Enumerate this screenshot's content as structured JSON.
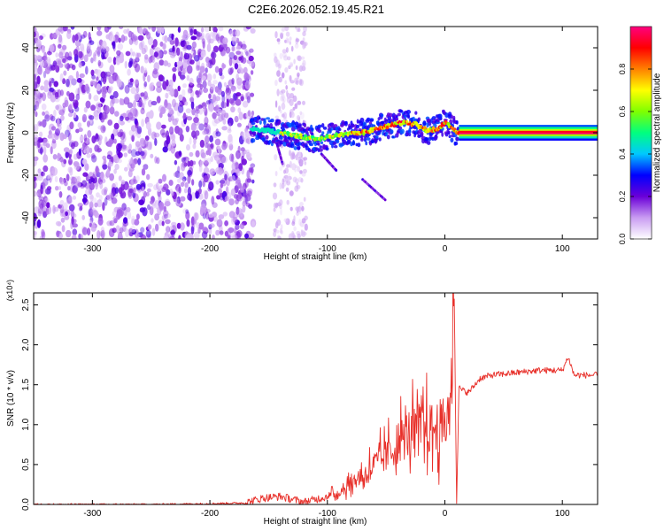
{
  "title": "C2E6.2026.052.19.45.R21",
  "chart_data": [
    {
      "type": "heatmap",
      "xlabel": "Height of straight line (km)",
      "ylabel": "Frequency (Hz)",
      "xlim": [
        -350,
        130
      ],
      "ylim": [
        -50,
        50
      ],
      "xticks": [
        -300,
        -200,
        -100,
        0,
        100
      ],
      "yticks": [
        40,
        20,
        0,
        -20,
        -40
      ],
      "colorbar": {
        "label": "Normalized spectral amplitude",
        "range": [
          0,
          1
        ],
        "ticks": [
          "0.0",
          "0.2",
          "0.4",
          "0.6",
          "0.8"
        ],
        "colors": [
          "#ffffff",
          "#c99cf2",
          "#6a00d8",
          "#0000ff",
          "#00c8ff",
          "#00ff7f",
          "#7fff00",
          "#ffff00",
          "#ff8000",
          "#ff0000",
          "#ff0080"
        ]
      },
      "ridge": {
        "x": [
          -165,
          -150,
          -130,
          -110,
          -90,
          -70,
          -50,
          -35,
          -25,
          -15,
          -5,
          0,
          10,
          130
        ],
        "y": [
          2,
          1,
          -1,
          -3,
          -1,
          0,
          3,
          5,
          4,
          1,
          2,
          5,
          0,
          0
        ]
      },
      "secondary_tracks": [
        {
          "x": [
            -143,
            -138
          ],
          "y": [
            -5,
            -15
          ]
        },
        {
          "x": [
            -105,
            -92
          ],
          "y": [
            -10,
            -18
          ]
        },
        {
          "x": [
            -70,
            -50
          ],
          "y": [
            -22,
            -32
          ]
        }
      ]
    },
    {
      "type": "line",
      "xlabel": "Height of straight line (km)",
      "ylabel": "SNR (10 * v/v)",
      "yscale_label": "(x10⁴)",
      "xlim": [
        -350,
        130
      ],
      "ylim": [
        0,
        2.65
      ],
      "xticks": [
        -300,
        -200,
        -100,
        0,
        100
      ],
      "yticks": [
        "0.0",
        "0.5",
        "1.0",
        "1.5",
        "2.0",
        "2.5"
      ],
      "color": "#e8302a",
      "series": [
        {
          "x": [
            -350,
            -300,
            -250,
            -200,
            -170,
            -155,
            -140,
            -120,
            -100,
            -90,
            -80,
            -70,
            -60,
            -50,
            -40,
            -30,
            -20,
            -10,
            0,
            5,
            8,
            10,
            12,
            20,
            30,
            40,
            60,
            80,
            100,
            105,
            110,
            130
          ],
          "y": [
            0.0,
            0.0,
            0.0,
            0.01,
            0.02,
            0.08,
            0.1,
            0.03,
            0.1,
            0.15,
            0.28,
            0.35,
            0.5,
            0.6,
            0.78,
            0.9,
            0.95,
            0.95,
            1.0,
            1.2,
            2.6,
            0.05,
            1.45,
            1.4,
            1.58,
            1.62,
            1.65,
            1.68,
            1.68,
            1.85,
            1.62,
            1.62
          ]
        }
      ]
    }
  ]
}
